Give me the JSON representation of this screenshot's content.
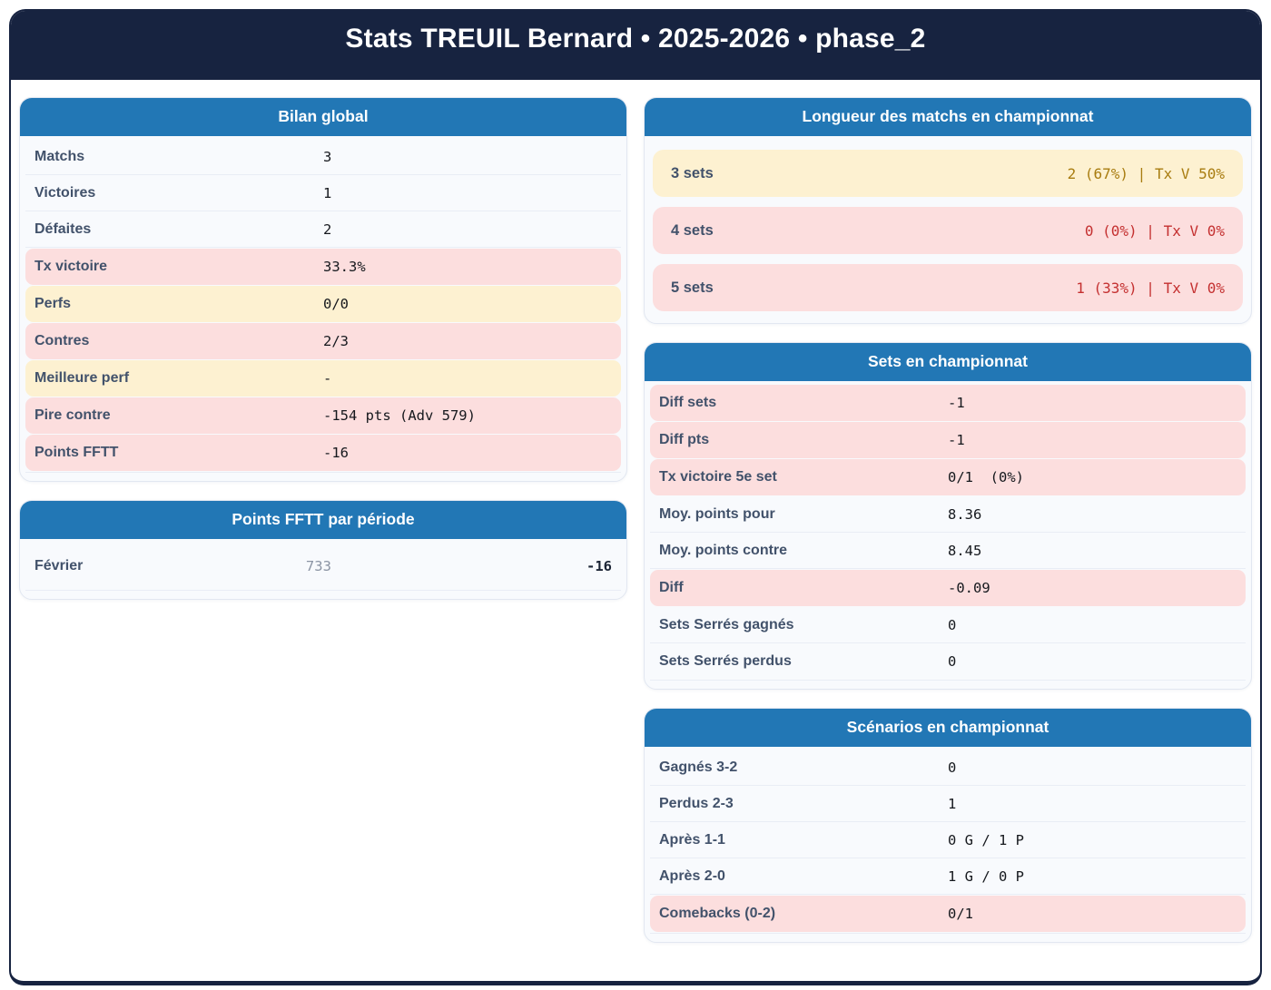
{
  "header": {
    "title": "Stats TREUIL Bernard • 2025-2026 • phase_2"
  },
  "colors": {
    "navy": "#172340",
    "blue": "#2277b5",
    "pink": "#fcdede",
    "yellow": "#fdf1d1",
    "red": "#c43030",
    "amber": "#a87c10"
  },
  "cards": {
    "bilan": {
      "title": "Bilan global",
      "rows": [
        {
          "label": "Matchs",
          "value": "3",
          "variant": "plain"
        },
        {
          "label": "Victoires",
          "value": "1",
          "variant": "plain"
        },
        {
          "label": "Défaites",
          "value": "2",
          "variant": "plain"
        },
        {
          "label": "Tx victoire",
          "value": "33.3%",
          "variant": "pink"
        },
        {
          "label": "Perfs",
          "value": "0/0",
          "variant": "yellow"
        },
        {
          "label": "Contres",
          "value": "2/3",
          "variant": "pink"
        },
        {
          "label": "Meilleure perf",
          "value": "-",
          "variant": "yellow"
        },
        {
          "label": "Pire contre",
          "value": "-154 pts (Adv 579)",
          "variant": "pink"
        },
        {
          "label": "Points FFTT",
          "value": "-16",
          "variant": "pink"
        }
      ]
    },
    "points_periode": {
      "title": "Points FFTT par période",
      "rows": [
        {
          "label": "Février",
          "mid": "733",
          "value": "-16"
        }
      ]
    },
    "longueur": {
      "title": "Longueur des matchs en championnat",
      "rows": [
        {
          "label": "3 sets",
          "value": "2 (67%) | Tx V 50%",
          "variant": "yellow"
        },
        {
          "label": "4 sets",
          "value": "0 (0%) | Tx V 0%",
          "variant": "pink"
        },
        {
          "label": "5 sets",
          "value": "1 (33%) | Tx V 0%",
          "variant": "pink"
        }
      ]
    },
    "sets": {
      "title": "Sets en championnat",
      "rows": [
        {
          "label": "Diff sets",
          "value": "-1",
          "variant": "pink"
        },
        {
          "label": "Diff pts",
          "value": "-1",
          "variant": "pink"
        },
        {
          "label": "Tx victoire 5e set",
          "value": "0/1  (0%)",
          "variant": "pink"
        },
        {
          "label": "Moy. points pour",
          "value": "8.36",
          "variant": "plain"
        },
        {
          "label": "Moy. points contre",
          "value": "8.45",
          "variant": "plain"
        },
        {
          "label": "Diff",
          "value": "-0.09",
          "variant": "pink"
        },
        {
          "label": "Sets Serrés gagnés",
          "value": "0",
          "variant": "plain"
        },
        {
          "label": "Sets Serrés perdus",
          "value": "0",
          "variant": "plain"
        }
      ]
    },
    "scenarios": {
      "title": "Scénarios en championnat",
      "rows": [
        {
          "label": "Gagnés 3-2",
          "value": "0",
          "variant": "plain"
        },
        {
          "label": "Perdus 2-3",
          "value": "1",
          "variant": "plain"
        },
        {
          "label": "Après 1-1",
          "value": "0 G / 1 P",
          "variant": "plain"
        },
        {
          "label": "Après 2-0",
          "value": "1 G / 0 P",
          "variant": "plain"
        },
        {
          "label": "Comebacks (0-2)",
          "value": "0/1",
          "variant": "pink"
        }
      ]
    }
  }
}
